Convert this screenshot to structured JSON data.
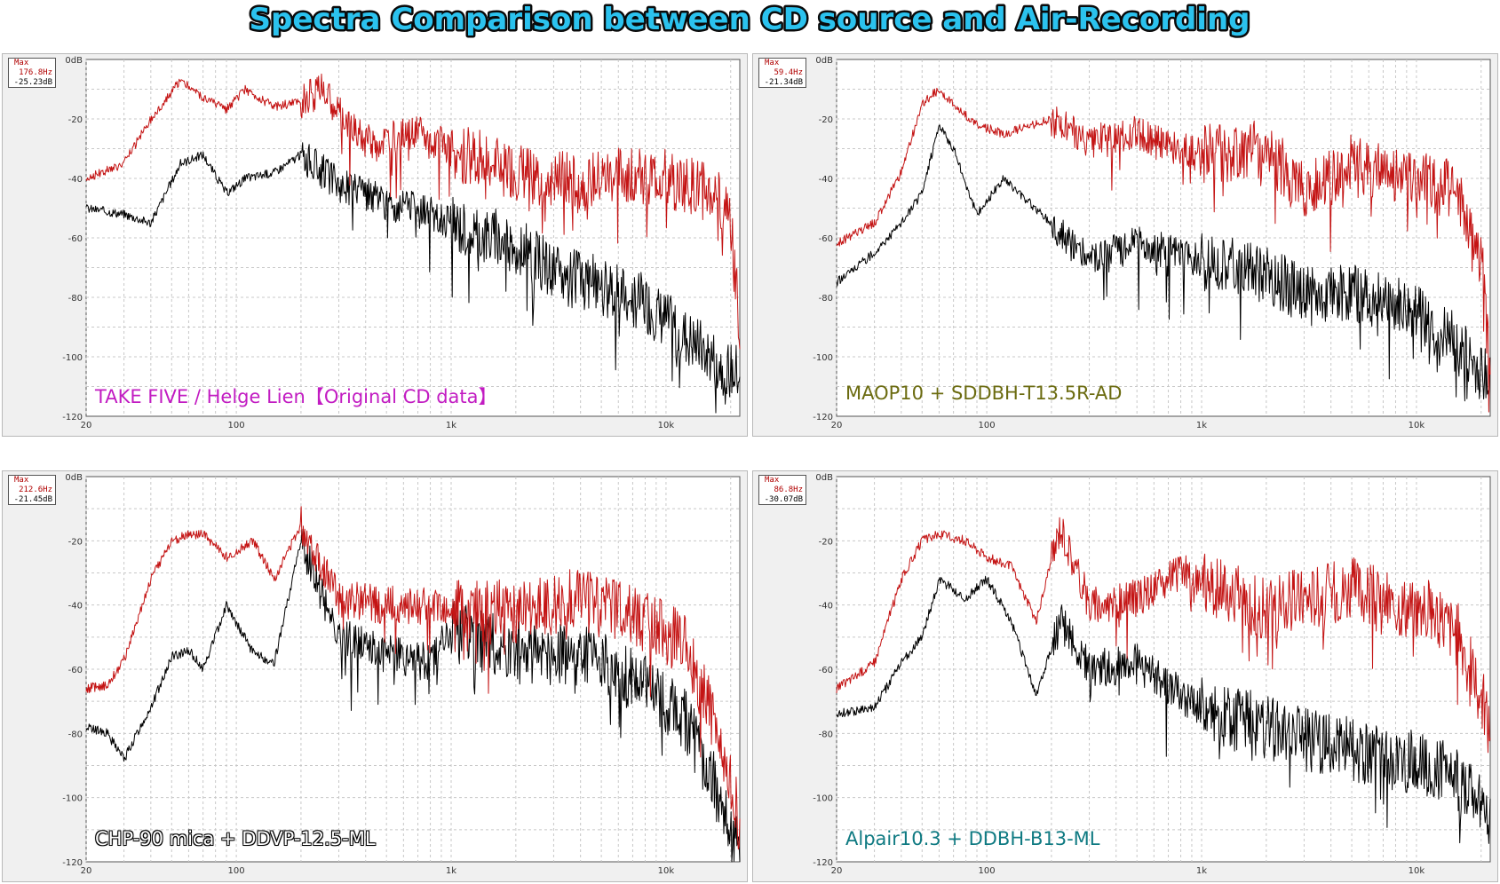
{
  "title": "Spectra Comparison between CD source and Air-Recording",
  "colors": {
    "title_fill": "#2bc2ee",
    "title_stroke": "#0a0a0a",
    "cd_series": "#000000",
    "air_series": "#c41414",
    "grid": "#c8c8c8"
  },
  "axes": {
    "y_ticks": [
      "0dB",
      "-20",
      "-40",
      "-60",
      "-80",
      "-100",
      "-120"
    ],
    "x_ticks": [
      "20",
      "100",
      "1k",
      "10k"
    ]
  },
  "panels": [
    {
      "caption": "TAKE FIVE / Helge Lien【Original CD data】",
      "caption_color": "#c21cc2",
      "max_label": "Max",
      "max_freq": "176.8Hz",
      "max_db": "-25.23dB"
    },
    {
      "caption": "MAOP10 + SDDBH-T13.5R-AD",
      "caption_color": "#6b6b10",
      "max_label": "Max",
      "max_freq": "59.4Hz",
      "max_db": "-21.34dB"
    },
    {
      "caption": "CHP-90 mica + DDVP-12.5-ML",
      "caption_color": "#ffffff",
      "max_label": "Max",
      "max_freq": "212.6Hz",
      "max_db": "-21.45dB"
    },
    {
      "caption": "Alpair10.3 + DDBH-B13-ML",
      "caption_color": "#0f7a82",
      "max_label": "Max",
      "max_freq": "86.8Hz",
      "max_db": "-30.07dB"
    }
  ],
  "chart_data": [
    {
      "type": "line",
      "xscale": "log",
      "xlim": [
        20,
        22050
      ],
      "ylim": [
        -120,
        0
      ],
      "grid": true,
      "series": [
        {
          "x": [
            20,
            30,
            40,
            55,
            70,
            90,
            110,
            150,
            200,
            250,
            400,
            700,
            1000,
            2000,
            4000,
            7000,
            10000,
            15000,
            20000,
            22000
          ],
          "values": [
            -40,
            -35,
            -20,
            -7,
            -13,
            -17,
            -10,
            -16,
            -14,
            -10,
            -28,
            -25,
            -30,
            -38,
            -42,
            -38,
            -40,
            -44,
            -50,
            -92
          ]
        },
        {
          "x": [
            20,
            30,
            40,
            55,
            70,
            90,
            110,
            150,
            200,
            300,
            500,
            800,
            1000,
            2000,
            3000,
            5000,
            8000,
            10000,
            15000,
            20000,
            22000
          ],
          "values": [
            -50,
            -52,
            -55,
            -35,
            -32,
            -45,
            -40,
            -38,
            -32,
            -42,
            -48,
            -52,
            -55,
            -62,
            -72,
            -76,
            -82,
            -88,
            -98,
            -105,
            -105
          ]
        }
      ]
    },
    {
      "type": "line",
      "xscale": "log",
      "xlim": [
        20,
        22050
      ],
      "ylim": [
        -120,
        0
      ],
      "grid": true,
      "series": [
        {
          "x": [
            20,
            30,
            40,
            50,
            60,
            70,
            90,
            120,
            200,
            300,
            500,
            800,
            1000,
            2000,
            3000,
            5000,
            8000,
            10000,
            15000,
            20000,
            22000
          ],
          "values": [
            -62,
            -55,
            -38,
            -15,
            -10,
            -15,
            -22,
            -25,
            -20,
            -28,
            -25,
            -30,
            -32,
            -30,
            -45,
            -35,
            -38,
            -40,
            -44,
            -65,
            -105
          ]
        },
        {
          "x": [
            20,
            30,
            40,
            50,
            60,
            70,
            90,
            120,
            200,
            300,
            500,
            800,
            1000,
            2000,
            3000,
            5000,
            8000,
            10000,
            15000,
            20000,
            22000
          ],
          "values": [
            -75,
            -65,
            -55,
            -45,
            -22,
            -30,
            -52,
            -40,
            -55,
            -68,
            -62,
            -65,
            -68,
            -72,
            -80,
            -78,
            -82,
            -85,
            -95,
            -105,
            -110
          ]
        }
      ]
    },
    {
      "type": "line",
      "xscale": "log",
      "xlim": [
        20,
        22050
      ],
      "ylim": [
        -120,
        0
      ],
      "grid": true,
      "series": [
        {
          "x": [
            20,
            25,
            30,
            40,
            50,
            60,
            70,
            90,
            120,
            150,
            200,
            300,
            500,
            800,
            1000,
            2000,
            4000,
            8000,
            12000,
            16000,
            20000,
            22000
          ],
          "values": [
            -66,
            -65,
            -57,
            -32,
            -20,
            -18,
            -18,
            -25,
            -20,
            -32,
            -15,
            -38,
            -40,
            -40,
            -42,
            -42,
            -38,
            -45,
            -52,
            -72,
            -95,
            -108
          ]
        },
        {
          "x": [
            20,
            25,
            30,
            40,
            50,
            60,
            70,
            90,
            120,
            150,
            200,
            300,
            500,
            800,
            1000,
            2000,
            4000,
            8000,
            12000,
            16000,
            20000,
            22000
          ],
          "values": [
            -78,
            -80,
            -88,
            -72,
            -56,
            -54,
            -60,
            -40,
            -55,
            -58,
            -20,
            -50,
            -55,
            -58,
            -48,
            -55,
            -55,
            -65,
            -75,
            -92,
            -110,
            -115
          ]
        }
      ]
    },
    {
      "type": "line",
      "xscale": "log",
      "xlim": [
        20,
        22050
      ],
      "ylim": [
        -120,
        0
      ],
      "grid": true,
      "series": [
        {
          "x": [
            20,
            30,
            40,
            50,
            60,
            80,
            100,
            130,
            170,
            220,
            300,
            500,
            800,
            1000,
            2000,
            3000,
            5000,
            8000,
            12000,
            16000,
            20000,
            22000
          ],
          "values": [
            -66,
            -58,
            -32,
            -20,
            -18,
            -20,
            -25,
            -28,
            -45,
            -15,
            -40,
            -38,
            -30,
            -32,
            -42,
            -38,
            -35,
            -40,
            -42,
            -50,
            -68,
            -80
          ]
        },
        {
          "x": [
            20,
            30,
            40,
            50,
            60,
            80,
            100,
            130,
            170,
            220,
            300,
            500,
            800,
            1000,
            2000,
            3000,
            5000,
            8000,
            12000,
            16000,
            20000,
            22000
          ],
          "values": [
            -74,
            -72,
            -58,
            -50,
            -32,
            -38,
            -32,
            -45,
            -68,
            -45,
            -60,
            -58,
            -68,
            -72,
            -78,
            -82,
            -85,
            -88,
            -90,
            -95,
            -102,
            -110
          ]
        }
      ]
    }
  ]
}
